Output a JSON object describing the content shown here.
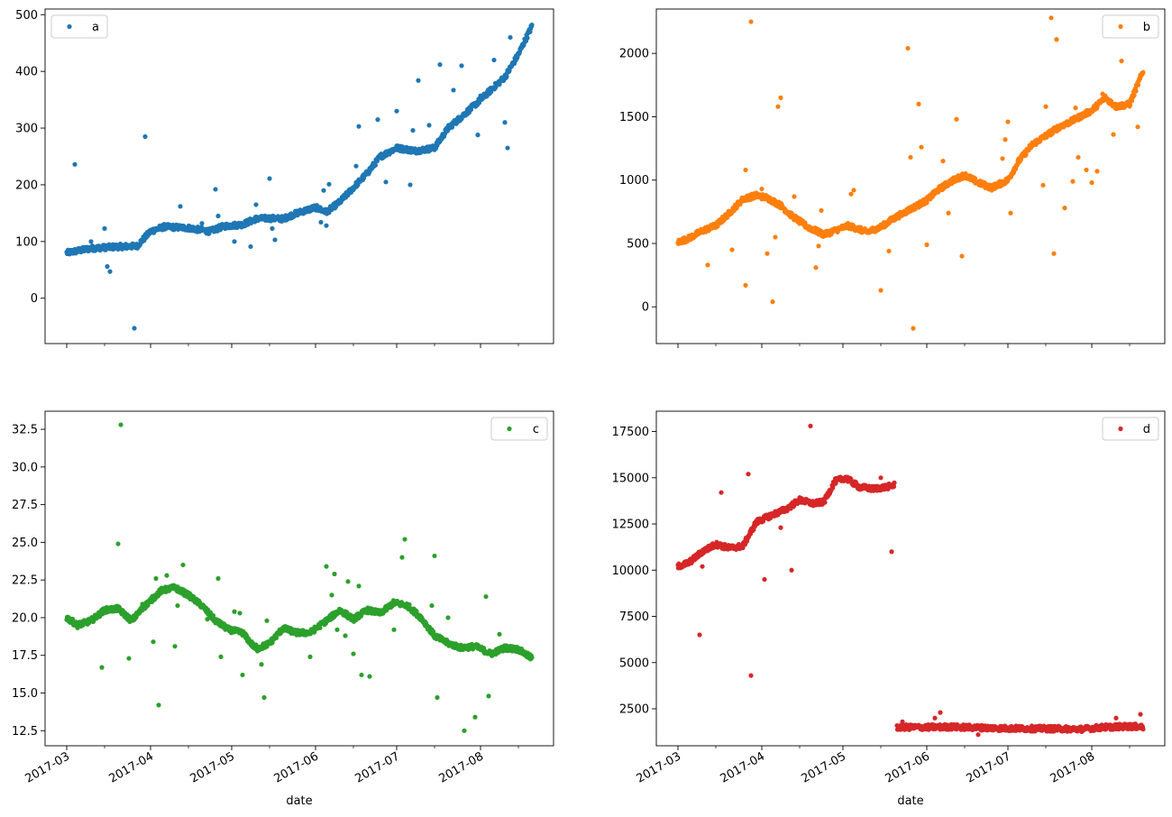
{
  "chart_data": [
    {
      "type": "scatter",
      "legend": "a",
      "legend_loc": "top-left",
      "color": "#1f77b4",
      "xlabel": "",
      "show_x_ticklabels": false,
      "yticks": [
        0,
        100,
        200,
        300,
        400,
        500
      ],
      "ylim": [
        -80,
        510
      ],
      "trend": [
        [
          "2017-03-01",
          80
        ],
        [
          "2017-03-10",
          88
        ],
        [
          "2017-03-20",
          91
        ],
        [
          "2017-03-27",
          92
        ],
        [
          "2017-04-01",
          118
        ],
        [
          "2017-04-06",
          126
        ],
        [
          "2017-04-15",
          124
        ],
        [
          "2017-04-20",
          120
        ],
        [
          "2017-04-23",
          118
        ],
        [
          "2017-04-28",
          127
        ],
        [
          "2017-05-05",
          130
        ],
        [
          "2017-05-10",
          140
        ],
        [
          "2017-05-15",
          141
        ],
        [
          "2017-05-20",
          140
        ],
        [
          "2017-05-25",
          150
        ],
        [
          "2017-06-01",
          160
        ],
        [
          "2017-06-05",
          152
        ],
        [
          "2017-06-10",
          170
        ],
        [
          "2017-06-15",
          195
        ],
        [
          "2017-06-20",
          220
        ],
        [
          "2017-06-25",
          250
        ],
        [
          "2017-07-01",
          265
        ],
        [
          "2017-07-08",
          260
        ],
        [
          "2017-07-15",
          265
        ],
        [
          "2017-07-20",
          300
        ],
        [
          "2017-07-25",
          320
        ],
        [
          "2017-08-01",
          350
        ],
        [
          "2017-08-05",
          368
        ],
        [
          "2017-08-10",
          390
        ],
        [
          "2017-08-15",
          430
        ],
        [
          "2017-08-20",
          480
        ]
      ],
      "points": [
        [
          "2017-03-04",
          236
        ],
        [
          "2017-03-06",
          83
        ],
        [
          "2017-03-10",
          100
        ],
        [
          "2017-03-15",
          123
        ],
        [
          "2017-03-16",
          56
        ],
        [
          "2017-03-17",
          47
        ],
        [
          "2017-03-23",
          88
        ],
        [
          "2017-03-26",
          -53
        ],
        [
          "2017-03-30",
          285
        ],
        [
          "2017-04-12",
          162
        ],
        [
          "2017-04-20",
          132
        ],
        [
          "2017-04-25",
          192
        ],
        [
          "2017-04-26",
          145
        ],
        [
          "2017-05-02",
          100
        ],
        [
          "2017-05-05",
          130
        ],
        [
          "2017-05-08",
          91
        ],
        [
          "2017-05-10",
          165
        ],
        [
          "2017-05-15",
          211
        ],
        [
          "2017-05-16",
          123
        ],
        [
          "2017-05-17",
          103
        ],
        [
          "2017-06-03",
          134
        ],
        [
          "2017-06-04",
          190
        ],
        [
          "2017-06-05",
          128
        ],
        [
          "2017-06-06",
          201
        ],
        [
          "2017-06-16",
          233
        ],
        [
          "2017-06-17",
          303
        ],
        [
          "2017-06-24",
          315
        ],
        [
          "2017-06-27",
          205
        ],
        [
          "2017-07-01",
          330
        ],
        [
          "2017-07-06",
          200
        ],
        [
          "2017-07-07",
          296
        ],
        [
          "2017-07-09",
          384
        ],
        [
          "2017-07-13",
          305
        ],
        [
          "2017-07-17",
          412
        ],
        [
          "2017-07-22",
          367
        ],
        [
          "2017-07-25",
          410
        ],
        [
          "2017-07-31",
          288
        ],
        [
          "2017-08-01",
          357
        ],
        [
          "2017-08-06",
          420
        ],
        [
          "2017-08-10",
          310
        ],
        [
          "2017-08-11",
          265
        ],
        [
          "2017-08-12",
          460
        ]
      ]
    },
    {
      "type": "scatter",
      "legend": "b",
      "legend_loc": "top-right",
      "color": "#ff7f0e",
      "xlabel": "",
      "show_x_ticklabels": false,
      "yticks": [
        0,
        500,
        1000,
        1500,
        2000
      ],
      "ylim": [
        -290,
        2350
      ],
      "trend": [
        [
          "2017-03-01",
          510
        ],
        [
          "2017-03-05",
          540
        ],
        [
          "2017-03-10",
          600
        ],
        [
          "2017-03-15",
          640
        ],
        [
          "2017-03-20",
          740
        ],
        [
          "2017-03-25",
          850
        ],
        [
          "2017-03-30",
          880
        ],
        [
          "2017-04-03",
          860
        ],
        [
          "2017-04-08",
          800
        ],
        [
          "2017-04-12",
          720
        ],
        [
          "2017-04-18",
          630
        ],
        [
          "2017-04-24",
          570
        ],
        [
          "2017-04-29",
          610
        ],
        [
          "2017-05-03",
          640
        ],
        [
          "2017-05-10",
          590
        ],
        [
          "2017-05-15",
          630
        ],
        [
          "2017-05-20",
          700
        ],
        [
          "2017-05-25",
          760
        ],
        [
          "2017-06-01",
          840
        ],
        [
          "2017-06-05",
          920
        ],
        [
          "2017-06-10",
          990
        ],
        [
          "2017-06-15",
          1040
        ],
        [
          "2017-06-20",
          980
        ],
        [
          "2017-06-25",
          940
        ],
        [
          "2017-07-01",
          1000
        ],
        [
          "2017-07-05",
          1150
        ],
        [
          "2017-07-10",
          1280
        ],
        [
          "2017-07-15",
          1350
        ],
        [
          "2017-07-20",
          1420
        ],
        [
          "2017-07-25",
          1470
        ],
        [
          "2017-08-01",
          1550
        ],
        [
          "2017-08-06",
          1650
        ],
        [
          "2017-08-10",
          1580
        ],
        [
          "2017-08-15",
          1600
        ],
        [
          "2017-08-20",
          1860
        ]
      ],
      "points": [
        [
          "2017-03-12",
          330
        ],
        [
          "2017-03-21",
          450
        ],
        [
          "2017-03-26",
          170
        ],
        [
          "2017-03-26",
          1080
        ],
        [
          "2017-03-28",
          2250
        ],
        [
          "2017-04-01",
          930
        ],
        [
          "2017-04-03",
          420
        ],
        [
          "2017-04-05",
          40
        ],
        [
          "2017-04-06",
          550
        ],
        [
          "2017-04-07",
          1580
        ],
        [
          "2017-04-08",
          1650
        ],
        [
          "2017-04-13",
          870
        ],
        [
          "2017-04-21",
          310
        ],
        [
          "2017-04-22",
          480
        ],
        [
          "2017-04-23",
          760
        ],
        [
          "2017-05-04",
          890
        ],
        [
          "2017-05-05",
          920
        ],
        [
          "2017-05-15",
          130
        ],
        [
          "2017-05-18",
          440
        ],
        [
          "2017-05-25",
          2040
        ],
        [
          "2017-05-26",
          1180
        ],
        [
          "2017-05-27",
          -170
        ],
        [
          "2017-05-29",
          1600
        ],
        [
          "2017-05-30",
          1260
        ],
        [
          "2017-06-01",
          490
        ],
        [
          "2017-06-07",
          1150
        ],
        [
          "2017-06-09",
          740
        ],
        [
          "2017-06-12",
          1480
        ],
        [
          "2017-06-14",
          400
        ],
        [
          "2017-06-29",
          1170
        ],
        [
          "2017-06-30",
          1320
        ],
        [
          "2017-07-01",
          1460
        ],
        [
          "2017-07-02",
          740
        ],
        [
          "2017-07-14",
          960
        ],
        [
          "2017-07-15",
          1580
        ],
        [
          "2017-07-17",
          2280
        ],
        [
          "2017-07-18",
          420
        ],
        [
          "2017-07-19",
          2110
        ],
        [
          "2017-07-22",
          780
        ],
        [
          "2017-07-25",
          990
        ],
        [
          "2017-07-26",
          1570
        ],
        [
          "2017-07-27",
          1180
        ],
        [
          "2017-07-30",
          1080
        ],
        [
          "2017-08-01",
          980
        ],
        [
          "2017-08-03",
          1070
        ],
        [
          "2017-08-05",
          1680
        ],
        [
          "2017-08-09",
          1360
        ],
        [
          "2017-08-12",
          1940
        ],
        [
          "2017-08-18",
          1420
        ]
      ]
    },
    {
      "type": "scatter",
      "legend": "c",
      "legend_loc": "top-right",
      "color": "#2ca02c",
      "xlabel": "date",
      "show_x_ticklabels": true,
      "yticks": [
        12.5,
        15.0,
        17.5,
        20.0,
        22.5,
        25.0,
        27.5,
        30.0,
        32.5
      ],
      "yticklabels": [
        "12.5",
        "15.0",
        "17.5",
        "20.0",
        "22.5",
        "25.0",
        "27.5",
        "30.0",
        "32.5"
      ],
      "ylim": [
        11.5,
        33.7
      ],
      "trend": [
        [
          "2017-03-01",
          20.0
        ],
        [
          "2017-03-05",
          19.5
        ],
        [
          "2017-03-10",
          19.8
        ],
        [
          "2017-03-15",
          20.5
        ],
        [
          "2017-03-20",
          20.6
        ],
        [
          "2017-03-25",
          19.8
        ],
        [
          "2017-03-30",
          20.8
        ],
        [
          "2017-04-05",
          21.8
        ],
        [
          "2017-04-10",
          22.0
        ],
        [
          "2017-04-15",
          21.5
        ],
        [
          "2017-04-20",
          20.8
        ],
        [
          "2017-04-25",
          19.8
        ],
        [
          "2017-04-30",
          19.2
        ],
        [
          "2017-05-05",
          19.0
        ],
        [
          "2017-05-10",
          17.9
        ],
        [
          "2017-05-15",
          18.3
        ],
        [
          "2017-05-20",
          19.3
        ],
        [
          "2017-05-25",
          19.0
        ],
        [
          "2017-05-30",
          19.0
        ],
        [
          "2017-06-05",
          19.8
        ],
        [
          "2017-06-10",
          20.5
        ],
        [
          "2017-06-15",
          19.9
        ],
        [
          "2017-06-20",
          20.5
        ],
        [
          "2017-06-25",
          20.3
        ],
        [
          "2017-06-30",
          21.0
        ],
        [
          "2017-07-05",
          20.8
        ],
        [
          "2017-07-10",
          20.0
        ],
        [
          "2017-07-15",
          18.8
        ],
        [
          "2017-07-20",
          18.3
        ],
        [
          "2017-07-25",
          18.0
        ],
        [
          "2017-07-30",
          18.1
        ],
        [
          "2017-08-05",
          17.6
        ],
        [
          "2017-08-10",
          18.0
        ],
        [
          "2017-08-15",
          17.9
        ],
        [
          "2017-08-20",
          17.3
        ]
      ],
      "points": [
        [
          "2017-03-14",
          16.7
        ],
        [
          "2017-03-20",
          24.9
        ],
        [
          "2017-03-21",
          32.8
        ],
        [
          "2017-03-24",
          17.3
        ],
        [
          "2017-03-29",
          20.9
        ],
        [
          "2017-04-02",
          18.4
        ],
        [
          "2017-04-03",
          22.6
        ],
        [
          "2017-04-04",
          14.2
        ],
        [
          "2017-04-07",
          22.8
        ],
        [
          "2017-04-10",
          18.1
        ],
        [
          "2017-04-11",
          20.8
        ],
        [
          "2017-04-13",
          23.5
        ],
        [
          "2017-04-22",
          19.9
        ],
        [
          "2017-04-26",
          22.6
        ],
        [
          "2017-04-27",
          17.4
        ],
        [
          "2017-05-02",
          20.4
        ],
        [
          "2017-05-04",
          20.3
        ],
        [
          "2017-05-05",
          16.2
        ],
        [
          "2017-05-10",
          18.2
        ],
        [
          "2017-05-12",
          16.9
        ],
        [
          "2017-05-13",
          14.7
        ],
        [
          "2017-05-14",
          19.8
        ],
        [
          "2017-05-30",
          17.4
        ],
        [
          "2017-06-05",
          23.4
        ],
        [
          "2017-06-07",
          21.5
        ],
        [
          "2017-06-08",
          22.9
        ],
        [
          "2017-06-09",
          19.2
        ],
        [
          "2017-06-12",
          18.8
        ],
        [
          "2017-06-13",
          22.4
        ],
        [
          "2017-06-15",
          17.6
        ],
        [
          "2017-06-17",
          22.1
        ],
        [
          "2017-06-18",
          16.2
        ],
        [
          "2017-06-21",
          16.1
        ],
        [
          "2017-06-30",
          19.2
        ],
        [
          "2017-07-03",
          24.0
        ],
        [
          "2017-07-04",
          25.2
        ],
        [
          "2017-07-14",
          20.8
        ],
        [
          "2017-07-15",
          24.1
        ],
        [
          "2017-07-16",
          14.7
        ],
        [
          "2017-07-20",
          20.0
        ],
        [
          "2017-07-26",
          12.5
        ],
        [
          "2017-07-30",
          13.4
        ],
        [
          "2017-08-03",
          21.4
        ],
        [
          "2017-08-04",
          14.8
        ],
        [
          "2017-08-08",
          18.9
        ]
      ]
    },
    {
      "type": "scatter",
      "legend": "d",
      "legend_loc": "top-right",
      "color": "#d62728",
      "xlabel": "date",
      "show_x_ticklabels": true,
      "yticks": [
        2500,
        5000,
        7500,
        10000,
        12500,
        15000,
        17500
      ],
      "ylim": [
        500,
        18600
      ],
      "trend": [
        [
          "2017-03-01",
          10200
        ],
        [
          "2017-03-05",
          10400
        ],
        [
          "2017-03-10",
          11000
        ],
        [
          "2017-03-15",
          11400
        ],
        [
          "2017-03-20",
          11200
        ],
        [
          "2017-03-25",
          11300
        ],
        [
          "2017-03-30",
          12600
        ],
        [
          "2017-04-05",
          13000
        ],
        [
          "2017-04-10",
          13300
        ],
        [
          "2017-04-15",
          13800
        ],
        [
          "2017-04-20",
          13600
        ],
        [
          "2017-04-24",
          13700
        ],
        [
          "2017-04-28",
          14800
        ],
        [
          "2017-05-02",
          15000
        ],
        [
          "2017-05-07",
          14500
        ],
        [
          "2017-05-12",
          14400
        ],
        [
          "2017-05-17",
          14500
        ],
        [
          "2017-05-20",
          14600
        ]
      ],
      "trend2": [
        [
          "2017-05-21",
          1500
        ],
        [
          "2017-06-01",
          1500
        ],
        [
          "2017-06-10",
          1520
        ],
        [
          "2017-06-20",
          1480
        ],
        [
          "2017-07-01",
          1440
        ],
        [
          "2017-07-10",
          1430
        ],
        [
          "2017-07-20",
          1420
        ],
        [
          "2017-07-28",
          1400
        ],
        [
          "2017-08-05",
          1500
        ],
        [
          "2017-08-15",
          1550
        ],
        [
          "2017-08-20",
          1520
        ]
      ],
      "points": [
        [
          "2017-03-09",
          6500
        ],
        [
          "2017-03-10",
          10200
        ],
        [
          "2017-03-17",
          14200
        ],
        [
          "2017-03-27",
          15200
        ],
        [
          "2017-03-28",
          4300
        ],
        [
          "2017-04-02",
          9500
        ],
        [
          "2017-04-08",
          12300
        ],
        [
          "2017-04-12",
          10000
        ],
        [
          "2017-04-19",
          17800
        ],
        [
          "2017-05-15",
          15000
        ],
        [
          "2017-05-19",
          11000
        ],
        [
          "2017-05-23",
          1800
        ],
        [
          "2017-06-04",
          2000
        ],
        [
          "2017-06-06",
          2300
        ],
        [
          "2017-06-20",
          1100
        ],
        [
          "2017-08-10",
          2000
        ],
        [
          "2017-08-19",
          2200
        ]
      ]
    }
  ],
  "shared_x": {
    "start": "2017-03-01",
    "end": "2017-08-20",
    "xlim": [
      "2017-02-21",
      "2017-08-28"
    ],
    "ticks": [
      "2017-03-01",
      "2017-04-01",
      "2017-05-01",
      "2017-06-01",
      "2017-07-01",
      "2017-08-01"
    ],
    "ticklabels": [
      "2017-03",
      "2017-04",
      "2017-05",
      "2017-06",
      "2017-07",
      "2017-08"
    ]
  }
}
